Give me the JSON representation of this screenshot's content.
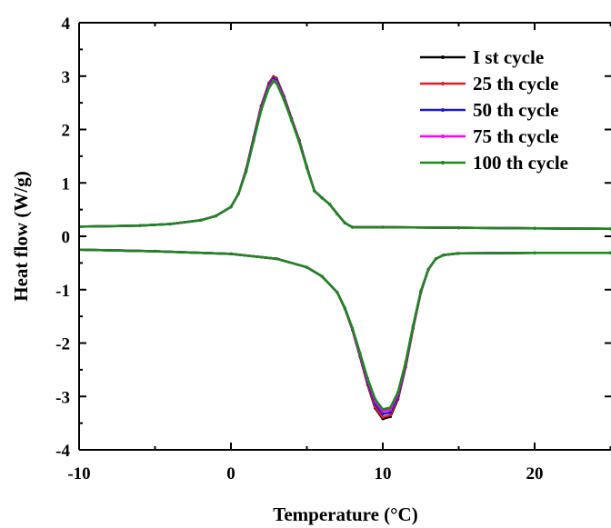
{
  "chart_data": {
    "type": "line",
    "xlabel": "Temperature (°C)",
    "ylabel": "Heat flow (W/g)",
    "xlim": [
      -10,
      25
    ],
    "ylim": [
      -4,
      4
    ],
    "xticks": [
      -10,
      0,
      10,
      20
    ],
    "xtick_labels": [
      "-10",
      "0",
      "10",
      "20"
    ],
    "yticks": [
      -4,
      -3,
      -2,
      -1,
      0,
      1,
      2,
      3,
      4
    ],
    "ytick_labels": [
      "-4",
      "-3",
      "-2",
      "-1",
      "0",
      "1",
      "2",
      "3",
      "4"
    ],
    "grid": false,
    "legend_position": "top-right",
    "series": [
      {
        "name": "I st cycle",
        "color": "#000000",
        "upper": {
          "x": [
            -10,
            -6,
            -4,
            -2,
            -1,
            0,
            0.5,
            1,
            1.5,
            2,
            2.5,
            2.8,
            3,
            3.5,
            4,
            4.5,
            5,
            5.5,
            6,
            6.5,
            7,
            7.5,
            8,
            10,
            15,
            20,
            25
          ],
          "y": [
            0.18,
            0.2,
            0.23,
            0.3,
            0.38,
            0.55,
            0.8,
            1.25,
            1.85,
            2.45,
            2.87,
            2.99,
            2.96,
            2.62,
            2.2,
            1.8,
            1.3,
            0.85,
            0.72,
            0.6,
            0.42,
            0.25,
            0.17,
            0.17,
            0.16,
            0.15,
            0.14
          ]
        },
        "lower": {
          "x": [
            -10,
            -5,
            0,
            3,
            5,
            6,
            7,
            7.5,
            8,
            8.5,
            9,
            9.5,
            10,
            10.5,
            11,
            11.5,
            12,
            12.5,
            13,
            13.5,
            14,
            15,
            20,
            25
          ],
          "y": [
            -0.25,
            -0.28,
            -0.33,
            -0.42,
            -0.58,
            -0.75,
            -1.05,
            -1.35,
            -1.75,
            -2.25,
            -2.78,
            -3.22,
            -3.42,
            -3.38,
            -3.05,
            -2.45,
            -1.72,
            -1.05,
            -0.62,
            -0.42,
            -0.35,
            -0.32,
            -0.31,
            -0.31
          ]
        }
      },
      {
        "name": "25 th cycle",
        "color": "#dd1f26",
        "upper": {
          "x": [
            -10,
            -6,
            -4,
            -2,
            -1,
            0,
            0.5,
            1,
            1.5,
            2,
            2.5,
            2.8,
            3,
            3.5,
            4,
            4.5,
            5,
            5.5,
            6,
            6.5,
            7,
            7.5,
            8,
            10,
            15,
            20,
            25
          ],
          "y": [
            0.18,
            0.2,
            0.23,
            0.3,
            0.38,
            0.55,
            0.8,
            1.24,
            1.84,
            2.44,
            2.86,
            2.98,
            2.95,
            2.61,
            2.19,
            1.79,
            1.29,
            0.85,
            0.72,
            0.6,
            0.42,
            0.25,
            0.17,
            0.17,
            0.16,
            0.15,
            0.14
          ]
        },
        "lower": {
          "x": [
            -10,
            -5,
            0,
            3,
            5,
            6,
            7,
            7.5,
            8,
            8.5,
            9,
            9.5,
            10,
            10.5,
            11,
            11.5,
            12,
            12.5,
            13,
            13.5,
            14,
            15,
            20,
            25
          ],
          "y": [
            -0.25,
            -0.28,
            -0.33,
            -0.42,
            -0.58,
            -0.75,
            -1.05,
            -1.35,
            -1.75,
            -2.24,
            -2.76,
            -3.2,
            -3.39,
            -3.35,
            -3.03,
            -2.43,
            -1.71,
            -1.05,
            -0.62,
            -0.42,
            -0.35,
            -0.32,
            -0.31,
            -0.31
          ]
        }
      },
      {
        "name": "50 th cycle",
        "color": "#1a1ad4",
        "upper": {
          "x": [
            -10,
            -6,
            -4,
            -2,
            -1,
            0,
            0.5,
            1,
            1.5,
            2,
            2.5,
            2.8,
            3,
            3.5,
            4,
            4.5,
            5,
            5.5,
            6,
            6.5,
            7,
            7.5,
            8,
            10,
            15,
            20,
            25
          ],
          "y": [
            0.18,
            0.2,
            0.23,
            0.3,
            0.38,
            0.55,
            0.8,
            1.23,
            1.82,
            2.41,
            2.83,
            2.95,
            2.92,
            2.59,
            2.18,
            1.78,
            1.29,
            0.85,
            0.72,
            0.6,
            0.42,
            0.25,
            0.17,
            0.17,
            0.16,
            0.15,
            0.14
          ]
        },
        "lower": {
          "x": [
            -10,
            -5,
            0,
            3,
            5,
            6,
            7,
            7.5,
            8,
            8.5,
            9,
            9.5,
            10,
            10.5,
            11,
            11.5,
            12,
            12.5,
            13,
            13.5,
            14,
            15,
            20,
            25
          ],
          "y": [
            -0.25,
            -0.28,
            -0.33,
            -0.42,
            -0.58,
            -0.75,
            -1.05,
            -1.35,
            -1.74,
            -2.22,
            -2.72,
            -3.14,
            -3.33,
            -3.3,
            -2.99,
            -2.4,
            -1.69,
            -1.04,
            -0.62,
            -0.42,
            -0.35,
            -0.32,
            -0.31,
            -0.31
          ]
        }
      },
      {
        "name": "75 th cycle",
        "color": "#ff00ff",
        "upper": {
          "x": [
            -10,
            -6,
            -4,
            -2,
            -1,
            0,
            0.5,
            1,
            1.5,
            2,
            2.5,
            2.8,
            3,
            3.5,
            4,
            4.5,
            5,
            5.5,
            6,
            6.5,
            7,
            7.5,
            8,
            10,
            15,
            20,
            25
          ],
          "y": [
            0.18,
            0.2,
            0.23,
            0.3,
            0.38,
            0.55,
            0.8,
            1.22,
            1.8,
            2.39,
            2.8,
            2.92,
            2.89,
            2.57,
            2.17,
            1.77,
            1.28,
            0.85,
            0.72,
            0.6,
            0.42,
            0.25,
            0.17,
            0.17,
            0.16,
            0.15,
            0.14
          ]
        },
        "lower": {
          "x": [
            -10,
            -5,
            0,
            3,
            5,
            6,
            7,
            7.5,
            8,
            8.5,
            9,
            9.5,
            10,
            10.5,
            11,
            11.5,
            12,
            12.5,
            13,
            13.5,
            14,
            15,
            20,
            25
          ],
          "y": [
            -0.25,
            -0.28,
            -0.33,
            -0.42,
            -0.58,
            -0.75,
            -1.05,
            -1.34,
            -1.73,
            -2.2,
            -2.69,
            -3.09,
            -3.28,
            -3.25,
            -2.95,
            -2.38,
            -1.68,
            -1.03,
            -0.62,
            -0.42,
            -0.35,
            -0.32,
            -0.31,
            -0.31
          ]
        }
      },
      {
        "name": "100 th cycle",
        "color": "#1a8a1a",
        "upper": {
          "x": [
            -10,
            -6,
            -4,
            -2,
            -1,
            0,
            0.5,
            1,
            1.5,
            2,
            2.5,
            2.8,
            3,
            3.5,
            4,
            4.5,
            5,
            5.5,
            6,
            6.5,
            7,
            7.5,
            8,
            10,
            15,
            20,
            25
          ],
          "y": [
            0.18,
            0.2,
            0.23,
            0.3,
            0.38,
            0.55,
            0.8,
            1.21,
            1.79,
            2.37,
            2.78,
            2.9,
            2.87,
            2.55,
            2.16,
            1.76,
            1.28,
            0.85,
            0.72,
            0.6,
            0.42,
            0.25,
            0.17,
            0.17,
            0.16,
            0.15,
            0.14
          ]
        },
        "lower": {
          "x": [
            -10,
            -5,
            0,
            3,
            5,
            6,
            7,
            7.5,
            8,
            8.5,
            9,
            9.5,
            10,
            10.5,
            11,
            11.5,
            12,
            12.5,
            13,
            13.5,
            14,
            15,
            20,
            25
          ],
          "y": [
            -0.25,
            -0.28,
            -0.33,
            -0.42,
            -0.58,
            -0.75,
            -1.05,
            -1.34,
            -1.72,
            -2.18,
            -2.66,
            -3.05,
            -3.24,
            -3.21,
            -2.92,
            -2.36,
            -1.67,
            -1.03,
            -0.62,
            -0.42,
            -0.35,
            -0.32,
            -0.31,
            -0.31
          ]
        }
      }
    ]
  }
}
